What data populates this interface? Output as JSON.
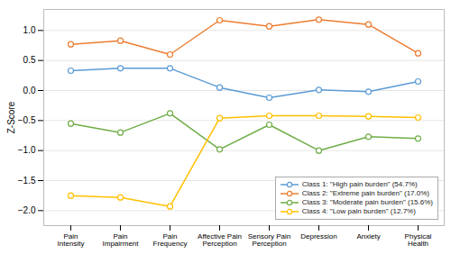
{
  "chart_data": {
    "type": "line",
    "categories": [
      "Pain\nIntensity",
      "Pain\nImpairment",
      "Pain\nFrequency",
      "Affective Pain\nPerception",
      "Sensory Pain\nPerception",
      "Depression",
      "Anxiety",
      "Physical\nHealth"
    ],
    "series": [
      {
        "name": "Class 1: \"High pain burden\" (54.7%)",
        "color": "#5b9bd5",
        "values": [
          0.33,
          0.37,
          0.37,
          0.05,
          -0.12,
          0.01,
          -0.02,
          0.15
        ]
      },
      {
        "name": "Class 2: \"Extreme pain burden\" (17.0%)",
        "color": "#ed7d31",
        "values": [
          0.77,
          0.83,
          0.6,
          1.17,
          1.07,
          1.18,
          1.1,
          0.62
        ]
      },
      {
        "name": "Class 3: \"Moderate pain burden\" (15.6%)",
        "color": "#70ad47",
        "values": [
          -0.55,
          -0.7,
          -0.38,
          -0.98,
          -0.57,
          -1.0,
          -0.77,
          -0.8
        ]
      },
      {
        "name": "Class 4: \"Low pain burden\" (12.7%)",
        "color": "#ffc000",
        "values": [
          -1.75,
          -1.78,
          -1.93,
          -0.46,
          -0.42,
          -0.42,
          -0.43,
          -0.45
        ]
      }
    ],
    "ylabel": "Z-Score",
    "ylim": [
      -2.25,
      1.35
    ],
    "yticks": [
      {
        "value": -2.0,
        "label": "−2.0"
      },
      {
        "value": -1.5,
        "label": "−1.5"
      },
      {
        "value": -1.0,
        "label": "−1.0"
      },
      {
        "value": -0.5,
        "label": "−0.5"
      },
      {
        "value": 0.0,
        "label": "0.0"
      },
      0.5,
      {
        "value": 1.0,
        "label": "1.0"
      }
    ],
    "grid": true,
    "legend": "lower right",
    "marker": "o"
  }
}
